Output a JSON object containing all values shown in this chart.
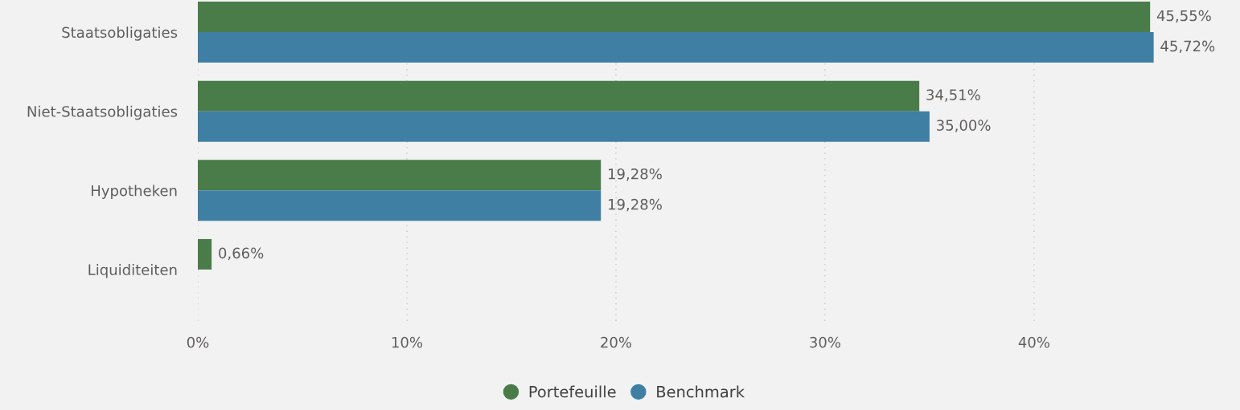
{
  "chart_data": {
    "type": "bar",
    "orientation": "horizontal",
    "categories": [
      "Staatsobligaties",
      "Niet-Staatsobligaties",
      "Hypotheken",
      "Liquiditeiten"
    ],
    "series": [
      {
        "name": "Portefeuille",
        "color": "#4a7c4a",
        "values": [
          45.55,
          34.51,
          19.28,
          0.66
        ],
        "value_labels": [
          "45,55%",
          "34,51%",
          "19,28%",
          "0,66%"
        ]
      },
      {
        "name": "Benchmark",
        "color": "#3f7fa3",
        "values": [
          45.72,
          35.0,
          19.28,
          null
        ],
        "value_labels": [
          "45,72%",
          "35,00%",
          "19,28%",
          null
        ]
      }
    ],
    "xlim": [
      0,
      49.85
    ],
    "xticks": [
      {
        "value": 0,
        "label": "0%"
      },
      {
        "value": 10,
        "label": "10%"
      },
      {
        "value": 20,
        "label": "20%"
      },
      {
        "value": 30,
        "label": "30%"
      },
      {
        "value": 40,
        "label": "40%"
      }
    ],
    "grid": "x",
    "legend": "bottom"
  }
}
